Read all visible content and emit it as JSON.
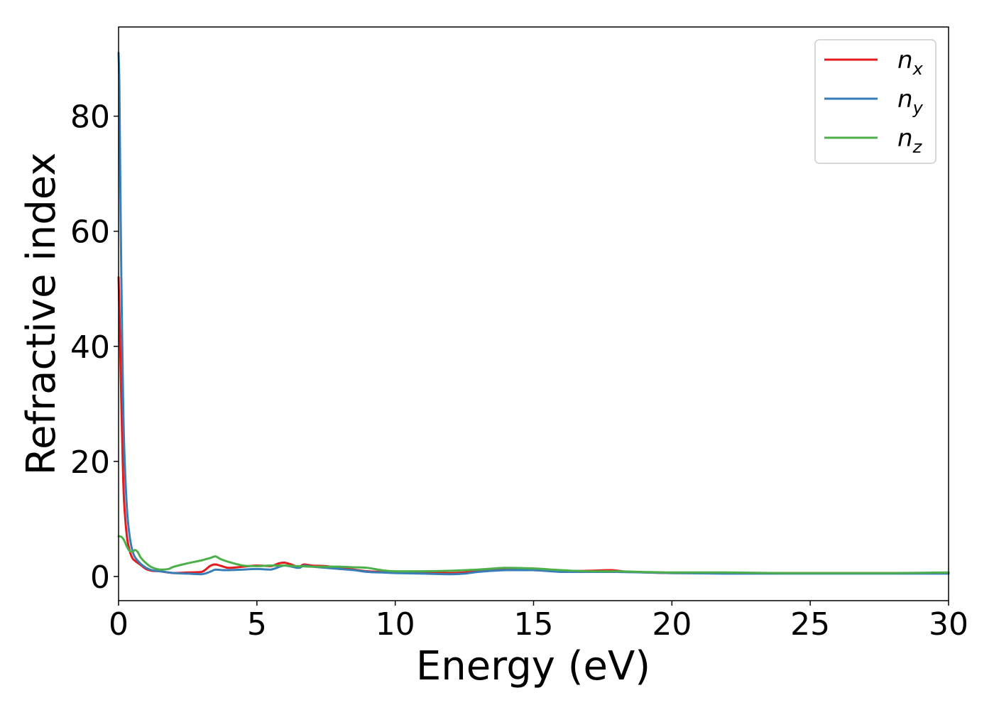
{
  "chart_data": {
    "type": "line",
    "xlabel": "Energy (eV)",
    "ylabel": "Refractive index",
    "xlim": [
      0,
      30
    ],
    "ylim": [
      -4.2,
      95.5
    ],
    "xticks": [
      0,
      5,
      10,
      15,
      20,
      25,
      30
    ],
    "xtick_labels": [
      "0",
      "5",
      "10",
      "15",
      "20",
      "25",
      "30"
    ],
    "yticks": [
      0,
      20,
      40,
      60,
      80
    ],
    "ytick_labels": [
      "0",
      "20",
      "40",
      "60",
      "80"
    ],
    "grid": false,
    "legend_position": "top-right",
    "series": [
      {
        "name": "n_x",
        "label_base": "n",
        "label_sub": "x",
        "color": "#e41a1c",
        "x": [
          0,
          0.05,
          0.1,
          0.15,
          0.2,
          0.3,
          0.4,
          0.5,
          0.6,
          0.8,
          1.0,
          1.2,
          1.5,
          2.0,
          2.5,
          3.0,
          3.3,
          3.5,
          3.8,
          4.0,
          4.5,
          5.0,
          5.5,
          5.8,
          6.0,
          6.3,
          6.5,
          6.7,
          7.0,
          7.5,
          8.0,
          8.5,
          9.0,
          9.5,
          10.0,
          11.0,
          12.0,
          12.5,
          13.0,
          14.0,
          15.0,
          16.0,
          17.0,
          17.8,
          18.5,
          20.0,
          22.0,
          24.0,
          26.0,
          28.0,
          30.0
        ],
        "y": [
          52,
          42,
          30,
          20,
          13,
          7,
          4.5,
          3.2,
          2.7,
          2.0,
          1.3,
          1.0,
          0.9,
          0.6,
          0.7,
          0.8,
          1.8,
          2.1,
          1.7,
          1.5,
          1.7,
          1.9,
          1.8,
          2.3,
          2.4,
          2.0,
          1.6,
          2.1,
          1.9,
          1.8,
          1.5,
          1.2,
          0.9,
          0.8,
          0.7,
          0.7,
          0.6,
          0.7,
          0.9,
          1.2,
          1.1,
          0.9,
          1.0,
          1.1,
          0.8,
          0.6,
          0.6,
          0.6,
          0.6,
          0.6,
          0.6
        ]
      },
      {
        "name": "n_y",
        "label_base": "n",
        "label_sub": "y",
        "color": "#377eb8",
        "x": [
          0,
          0.03,
          0.06,
          0.1,
          0.15,
          0.2,
          0.3,
          0.4,
          0.5,
          0.6,
          0.8,
          1.0,
          1.2,
          1.5,
          2.0,
          2.5,
          3.0,
          3.3,
          3.5,
          3.8,
          4.0,
          4.5,
          5.0,
          5.5,
          6.0,
          6.5,
          6.7,
          7.0,
          7.5,
          8.0,
          8.5,
          9.0,
          9.5,
          10.0,
          11.0,
          12.0,
          12.5,
          13.0,
          14.0,
          15.0,
          16.0,
          17.0,
          18.0,
          20.0,
          22.0,
          24.0,
          26.0,
          28.0,
          30.0
        ],
        "y": [
          91,
          85,
          70,
          52,
          35,
          23,
          12,
          7,
          4.5,
          3.3,
          2.2,
          1.5,
          1.1,
          0.9,
          0.6,
          0.5,
          0.4,
          0.8,
          1.2,
          1.1,
          1.1,
          1.2,
          1.3,
          1.2,
          1.9,
          1.5,
          1.9,
          1.7,
          1.5,
          1.3,
          1.1,
          0.8,
          0.7,
          0.6,
          0.5,
          0.4,
          0.5,
          0.8,
          1.1,
          1.1,
          0.8,
          0.8,
          0.8,
          0.6,
          0.5,
          0.5,
          0.5,
          0.5,
          0.5
        ]
      },
      {
        "name": "n_z",
        "label_base": "n",
        "label_sub": "z",
        "color": "#4daf4a",
        "x": [
          0,
          0.1,
          0.2,
          0.3,
          0.4,
          0.5,
          0.6,
          0.7,
          0.8,
          1.0,
          1.2,
          1.5,
          1.8,
          2.0,
          2.5,
          3.0,
          3.3,
          3.5,
          3.7,
          4.0,
          4.5,
          5.0,
          5.5,
          6.0,
          6.5,
          7.0,
          7.5,
          8.0,
          8.5,
          9.0,
          9.5,
          10.0,
          11.0,
          12.0,
          13.0,
          14.0,
          15.0,
          16.0,
          17.0,
          18.0,
          20.0,
          22.0,
          24.0,
          26.0,
          28.0,
          30.0
        ],
        "y": [
          7.0,
          6.9,
          6.3,
          5.2,
          4.4,
          4.3,
          4.6,
          4.2,
          3.3,
          2.3,
          1.6,
          1.2,
          1.3,
          1.7,
          2.3,
          2.8,
          3.2,
          3.5,
          3.0,
          2.5,
          1.9,
          1.8,
          1.9,
          1.9,
          1.8,
          1.7,
          1.7,
          1.7,
          1.6,
          1.5,
          1.1,
          0.9,
          0.9,
          1.0,
          1.2,
          1.5,
          1.4,
          1.1,
          0.9,
          0.9,
          0.7,
          0.7,
          0.6,
          0.6,
          0.6,
          0.7
        ]
      }
    ]
  }
}
